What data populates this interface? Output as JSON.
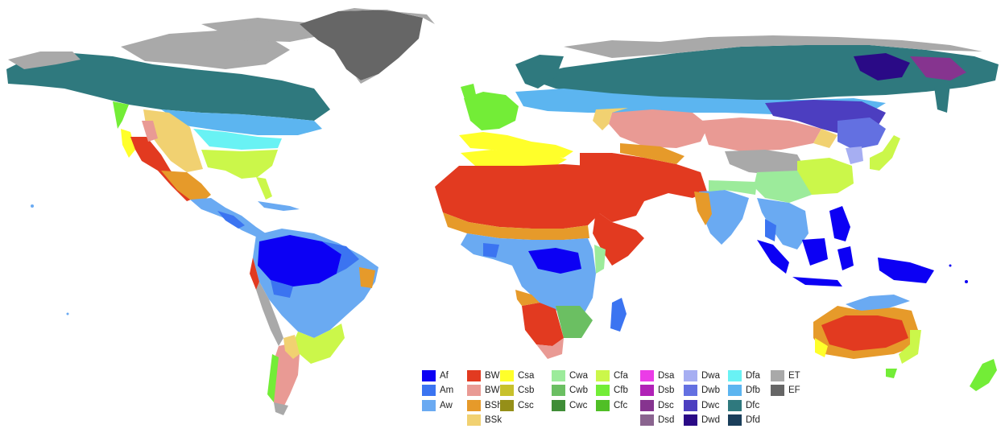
{
  "map": {
    "legend_columns": [
      [
        {
          "code": "Af",
          "color": "#0c00f4"
        },
        {
          "code": "Am",
          "color": "#3b74f1"
        },
        {
          "code": "Aw",
          "color": "#6aaaf2"
        }
      ],
      [
        {
          "code": "BWh",
          "color": "#e23a20"
        },
        {
          "code": "BWk",
          "color": "#e99a94"
        },
        {
          "code": "BSh",
          "color": "#e69a2a"
        },
        {
          "code": "BSk",
          "color": "#f1d171"
        }
      ],
      [
        {
          "code": "Csa",
          "color": "#ffff2a"
        },
        {
          "code": "Csb",
          "color": "#c8c12c"
        },
        {
          "code": "Csc",
          "color": "#958f18"
        }
      ],
      [
        {
          "code": "Cwa",
          "color": "#9ceb9b"
        },
        {
          "code": "Cwb",
          "color": "#6bbf62"
        },
        {
          "code": "Cwc",
          "color": "#3f8d37"
        }
      ],
      [
        {
          "code": "Cfa",
          "color": "#cbf74a"
        },
        {
          "code": "Cfb",
          "color": "#73ed37"
        },
        {
          "code": "Cfc",
          "color": "#50bf26"
        }
      ],
      [
        {
          "code": "Dsa",
          "color": "#eb3ce7"
        },
        {
          "code": "Dsb",
          "color": "#b122b7"
        },
        {
          "code": "Dsc",
          "color": "#86348f"
        },
        {
          "code": "Dsd",
          "color": "#8a648f"
        }
      ],
      [
        {
          "code": "Dwa",
          "color": "#a6aef2"
        },
        {
          "code": "Dwb",
          "color": "#6370e1"
        },
        {
          "code": "Dwc",
          "color": "#4c3ec0"
        },
        {
          "code": "Dwd",
          "color": "#2a0a86"
        }
      ],
      [
        {
          "code": "Dfa",
          "color": "#69f2f4"
        },
        {
          "code": "Dfb",
          "color": "#5cb5f0"
        },
        {
          "code": "Dfc",
          "color": "#2f797e"
        },
        {
          "code": "Dfd",
          "color": "#1a3e5a"
        }
      ],
      [
        {
          "code": "ET",
          "color": "#a9a9a9"
        },
        {
          "code": "EF",
          "color": "#666666"
        }
      ]
    ]
  }
}
